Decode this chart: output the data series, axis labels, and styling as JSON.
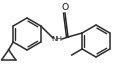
{
  "bg_color": "#ffffff",
  "line_color": "#2a2a2a",
  "line_width": 1.1,
  "text_color": "#1a1a1a",
  "font_size": 5.2,
  "figsize": [
    1.22,
    0.81
  ],
  "dpi": 100,
  "xlim": [
    0,
    122
  ],
  "ylim": [
    0,
    81
  ]
}
